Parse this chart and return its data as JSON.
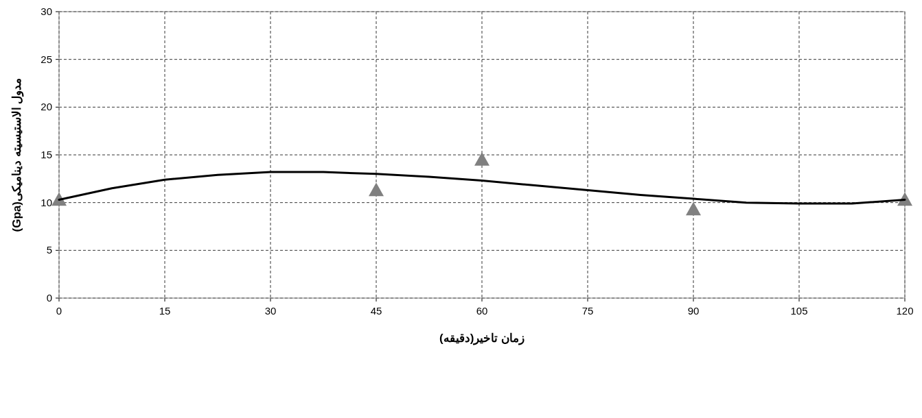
{
  "chart_data": {
    "type": "scatter",
    "xlabel": "زمان تاخیر(دقیقه)",
    "ylabel": "مدول الاستیسیته دینامیکی(Gpa)",
    "xlim": [
      0,
      120
    ],
    "ylim": [
      0,
      30
    ],
    "xticks": [
      0,
      15,
      30,
      45,
      60,
      75,
      90,
      105,
      120
    ],
    "yticks": [
      0,
      5,
      10,
      15,
      20,
      25,
      30
    ],
    "grid": true,
    "marker": "triangle",
    "series": [
      {
        "color": "#808080",
        "x": [
          0,
          45,
          60,
          90,
          120
        ],
        "values": [
          10.3,
          11.3,
          14.5,
          9.3,
          10.3
        ]
      },
      {
        "type": "line",
        "color": "#000000",
        "x": [
          0,
          7.5,
          15,
          22.5,
          30,
          37.5,
          45,
          52.5,
          60,
          67.5,
          75,
          82.5,
          90,
          97.5,
          105,
          112.5,
          120
        ],
        "values": [
          10.3,
          11.5,
          12.4,
          12.9,
          13.2,
          13.2,
          13.0,
          12.7,
          12.3,
          11.8,
          11.3,
          10.8,
          10.4,
          10.0,
          9.9,
          9.9,
          10.3
        ],
        "marker": "none"
      }
    ]
  }
}
